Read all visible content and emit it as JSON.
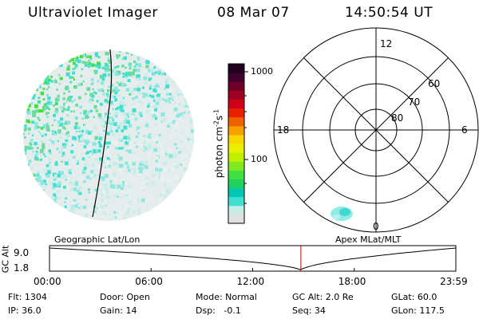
{
  "header": {
    "title": "Ultraviolet Imager",
    "date": "08 Mar 07",
    "time": "14:50:54 UT"
  },
  "colorbar": {
    "unit_label": "photon cm",
    "unit_exp1": "-2",
    "unit_mid": "s",
    "unit_exp2": "-1",
    "tick_labels": [
      "1000",
      "100"
    ],
    "colors": [
      "#e0e0e0",
      "#c8ece8",
      "#40e0d0",
      "#00c8b4",
      "#20d060",
      "#40e040",
      "#80e820",
      "#c0f000",
      "#e8f000",
      "#f8d800",
      "#f8a000",
      "#f06000",
      "#e82000",
      "#d00018",
      "#a00020",
      "#700028",
      "#400030",
      "#200020"
    ]
  },
  "polar_plot": {
    "mlt_labels": {
      "top": "12",
      "left": "18",
      "right": "6",
      "bottom": "0"
    },
    "lat_labels": [
      "60",
      "70",
      "80"
    ]
  },
  "timeline": {
    "y_axis_label": "GC Alt",
    "y_ticks": [
      "9.0",
      "1.8"
    ],
    "left_title": "Geographic Lat/Lon",
    "right_title": "Apex MLat/MLT",
    "x_ticks": [
      "00:00",
      "06:00",
      "12:00",
      "18:00",
      "23:59"
    ],
    "current_hour": 14.848,
    "marker_color": "#c00000"
  },
  "info": {
    "flt": "Flt: 1304",
    "ip": "IP: 36.0",
    "door": "Door: Open",
    "gain": "Gain: 14",
    "mode": "Mode: Normal",
    "dsp": "Dsp:   -0.1",
    "gc_alt": "GC Alt: 2.0 Re",
    "seq": "Seq: 34",
    "glat": "GLat: 60.0",
    "glon": "GLon: 117.5"
  }
}
